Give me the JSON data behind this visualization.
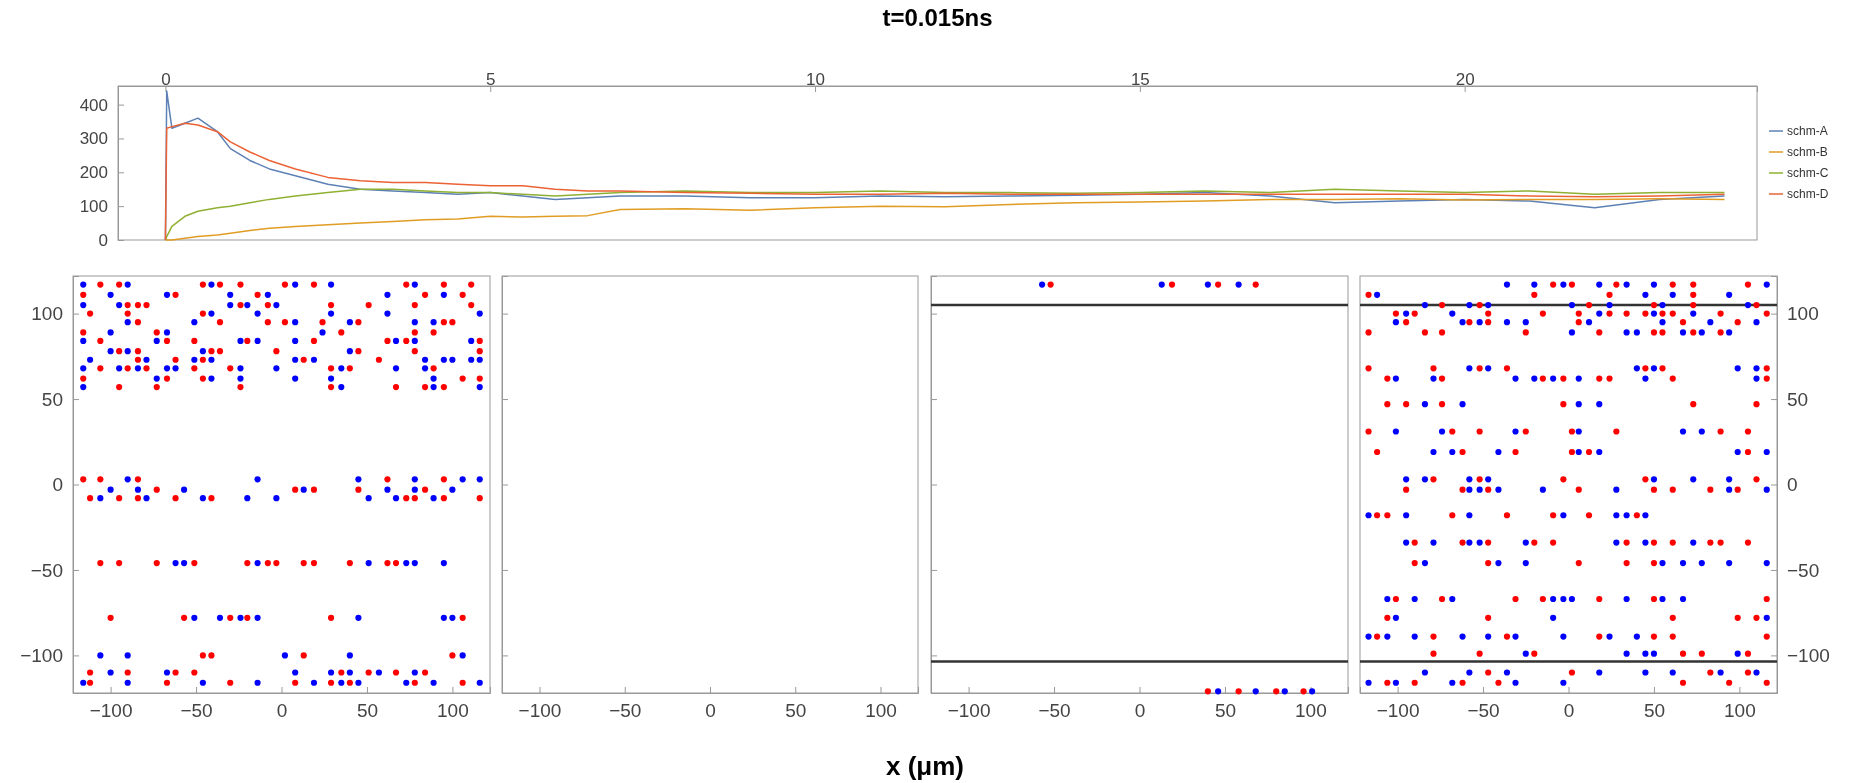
{
  "chart_data": [
    {
      "type": "line",
      "title": "t=0.015ns",
      "legend": "right",
      "xlim": [
        -0.73,
        24.5
      ],
      "xticks": [
        0,
        5,
        10,
        15,
        20
      ],
      "ylim": [
        0,
        455
      ],
      "yticks": [
        0,
        100,
        200,
        300,
        400
      ],
      "x": [
        0,
        0.02,
        0.1,
        0.3,
        0.5,
        0.8,
        1,
        1.3,
        1.6,
        2,
        2.5,
        3,
        3.5,
        4,
        4.5,
        5,
        5.5,
        6,
        6.5,
        7,
        8,
        9,
        10,
        11,
        12,
        13,
        14,
        15,
        16,
        17,
        18,
        19,
        20,
        21,
        22,
        23,
        24
      ],
      "series": [
        {
          "name": "schm-A",
          "color": "#5e81b5",
          "values": [
            0,
            440,
            330,
            345,
            360,
            320,
            270,
            235,
            210,
            190,
            165,
            150,
            145,
            140,
            135,
            140,
            130,
            120,
            125,
            130,
            130,
            125,
            125,
            130,
            128,
            130,
            132,
            135,
            140,
            130,
            110,
            115,
            120,
            115,
            95,
            120,
            130
          ]
        },
        {
          "name": "schm-B",
          "color": "#e19c24",
          "values": [
            0,
            0,
            0,
            5,
            10,
            15,
            20,
            28,
            35,
            40,
            45,
            50,
            55,
            60,
            62,
            70,
            68,
            70,
            72,
            90,
            92,
            88,
            95,
            100,
            98,
            105,
            110,
            112,
            115,
            120,
            120,
            122,
            118,
            120,
            120,
            122,
            120
          ]
        },
        {
          "name": "schm-C",
          "color": "#8fb032",
          "values": [
            0,
            10,
            40,
            70,
            85,
            95,
            100,
            110,
            120,
            130,
            140,
            150,
            150,
            145,
            140,
            140,
            135,
            130,
            135,
            140,
            145,
            140,
            140,
            145,
            140,
            140,
            138,
            140,
            145,
            140,
            150,
            145,
            140,
            145,
            135,
            140,
            140
          ]
        },
        {
          "name": "schm-D",
          "color": "#eb6235",
          "values": [
            0,
            330,
            335,
            345,
            340,
            320,
            290,
            260,
            235,
            210,
            185,
            175,
            170,
            170,
            165,
            160,
            160,
            150,
            145,
            145,
            140,
            138,
            135,
            135,
            138,
            135,
            135,
            135,
            135,
            135,
            135,
            135,
            135,
            130,
            128,
            130,
            135
          ]
        }
      ]
    },
    {
      "type": "scatter",
      "marker": "circle",
      "xlim": [
        -122,
        122
      ],
      "xticks": [
        -100,
        -50,
        0,
        50,
        100
      ],
      "ylim": [
        -122,
        122
      ],
      "yticks": [
        -100,
        -50,
        0,
        50,
        100
      ],
      "series": [
        {
          "color": "#ff0000",
          "x": [
            -106,
            -95,
            -46,
            -36,
            -24,
            2,
            19,
            73,
            95,
            111,
            -116,
            -62,
            -14,
            84,
            106,
            -90,
            -84,
            -79,
            -24,
            -8,
            29,
            51,
            78,
            111,
            -112,
            -90,
            -46,
            -84,
            -36,
            -8,
            2,
            24,
            45,
            95,
            100,
            -116,
            -73,
            35,
            78,
            89,
            -106,
            -67,
            -51,
            -20,
            19,
            62,
            73,
            116,
            -95,
            -84,
            -41,
            -36,
            -3,
            45,
            78,
            116,
            -84,
            -62,
            -46,
            13,
            57,
            -106,
            -90,
            -79,
            -51,
            -30,
            29,
            40,
            89,
            -116,
            -67,
            -46,
            106,
            116,
            -95,
            -73,
            -24,
            29,
            67,
            84,
            95,
            -116,
            -106,
            -84,
            62,
            95,
            -73,
            8,
            19,
            45,
            84,
            -112,
            -95,
            -84,
            -62,
            -41,
            73,
            78,
            95,
            116,
            -106,
            -95,
            -73,
            -51,
            -20,
            -8,
            -3,
            13,
            19,
            40,
            62,
            67,
            -100,
            -57,
            -30,
            -20,
            29,
            106,
            -46,
            -41,
            13,
            100,
            -112,
            -90,
            -62,
            -51,
            35,
            51,
            67,
            84,
            -112,
            -67,
            -30,
            8,
            29,
            40,
            78,
            106
          ],
          "values": [
            117,
            117,
            117,
            117,
            117,
            117,
            117,
            117,
            117,
            117,
            111,
            111,
            111,
            111,
            111,
            105,
            105,
            105,
            105,
            105,
            105,
            105,
            105,
            105,
            100,
            100,
            100,
            95,
            95,
            95,
            95,
            95,
            95,
            95,
            95,
            89,
            89,
            89,
            89,
            89,
            84,
            84,
            84,
            84,
            84,
            84,
            84,
            84,
            78,
            78,
            78,
            78,
            78,
            78,
            78,
            78,
            73,
            73,
            73,
            73,
            73,
            68,
            68,
            68,
            68,
            68,
            68,
            68,
            68,
            62,
            62,
            62,
            62,
            62,
            57,
            57,
            57,
            57,
            57,
            57,
            57,
            3,
            3,
            3,
            3,
            3,
            -3,
            -3,
            -3,
            -3,
            -3,
            -8,
            -8,
            -8,
            -8,
            -8,
            -8,
            -8,
            -8,
            -8,
            -46,
            -46,
            -46,
            -46,
            -46,
            -46,
            -46,
            -46,
            -46,
            -46,
            -46,
            -46,
            -78,
            -78,
            -78,
            -78,
            -78,
            -78,
            -100,
            -100,
            -100,
            -100,
            -110,
            -110,
            -110,
            -110,
            -110,
            -110,
            -110,
            -110,
            -116,
            -116,
            -116,
            -116,
            -116,
            -116,
            -116,
            -116
          ]
        },
        {
          "color": "#0000ff",
          "x": [
            -116,
            -90,
            -41,
            8,
            29,
            78,
            -100,
            -67,
            -30,
            -8,
            62,
            95,
            -116,
            -95,
            -30,
            -20,
            -3,
            -41,
            -14,
            29,
            62,
            116,
            -90,
            -51,
            8,
            40,
            78,
            89,
            -100,
            -67,
            24,
            -116,
            -73,
            -24,
            -14,
            8,
            67,
            78,
            111,
            -100,
            -90,
            -46,
            40,
            -112,
            -79,
            -51,
            -41,
            8,
            19,
            84,
            95,
            100,
            111,
            116,
            -116,
            -95,
            -84,
            -67,
            -62,
            -24,
            -3,
            35,
            67,
            84,
            -73,
            -41,
            -24,
            8,
            29,
            89,
            -116,
            35,
            89,
            116,
            -90,
            -14,
            45,
            78,
            106,
            116,
            -100,
            -84,
            -57,
            13,
            62,
            78,
            100,
            -106,
            -79,
            -46,
            -20,
            -3,
            51,
            67,
            89,
            -62,
            -57,
            -14,
            51,
            73,
            78,
            95,
            -51,
            -36,
            -24,
            -14,
            45,
            95,
            100,
            -106,
            -90,
            2,
            40,
            106,
            -100,
            -67,
            8,
            29,
            40,
            57,
            78,
            -116,
            -90,
            -46,
            -14,
            19,
            35,
            45,
            73,
            89,
            116
          ],
          "values": [
            117,
            117,
            117,
            117,
            117,
            117,
            111,
            111,
            111,
            111,
            111,
            111,
            105,
            105,
            105,
            105,
            105,
            100,
            100,
            100,
            100,
            100,
            95,
            95,
            95,
            95,
            95,
            95,
            89,
            89,
            89,
            84,
            84,
            84,
            84,
            84,
            84,
            84,
            84,
            78,
            78,
            78,
            78,
            73,
            73,
            73,
            73,
            73,
            73,
            73,
            73,
            73,
            73,
            73,
            68,
            68,
            68,
            68,
            68,
            68,
            68,
            68,
            68,
            68,
            62,
            62,
            62,
            62,
            62,
            62,
            57,
            57,
            57,
            57,
            3,
            3,
            3,
            3,
            3,
            3,
            -3,
            -3,
            -3,
            -3,
            -3,
            -3,
            -3,
            -8,
            -8,
            -8,
            -8,
            -8,
            -8,
            -8,
            -8,
            -46,
            -46,
            -46,
            -46,
            -46,
            -46,
            -46,
            -78,
            -78,
            -78,
            -78,
            -78,
            -78,
            -78,
            -100,
            -100,
            -100,
            -100,
            -100,
            -110,
            -110,
            -110,
            -110,
            -110,
            -110,
            -110,
            -116,
            -116,
            -116,
            -116,
            -116,
            -116,
            -116,
            -116,
            -116,
            -116
          ]
        }
      ]
    },
    {
      "type": "scatter",
      "tick_labels": "x",
      "xlim": [
        -122,
        122
      ],
      "xticks": [
        -100,
        -50,
        0,
        50,
        100
      ],
      "ylim": [
        -122,
        122
      ],
      "yticks": [
        -100,
        -50,
        0,
        50,
        100
      ],
      "xlabel": "x (μm)"
    },
    {
      "type": "scatter",
      "marker": "circle",
      "tick_labels": "x",
      "xlim": [
        -122,
        122
      ],
      "xticks": [
        -100,
        -50,
        0,
        50,
        100
      ],
      "ylim": [
        -122,
        122
      ],
      "yticks": [
        -100,
        -50,
        0,
        50,
        100
      ],
      "ref_lines": [
        {
          "axis": "y",
          "value": 105,
          "color": "#333333"
        },
        {
          "axis": "y",
          "value": -103.5,
          "color": "#333333"
        }
      ],
      "series": [
        {
          "color": "#ff0000",
          "x": [
            -52,
            19,
            46,
            68,
            40,
            58,
            80,
            96
          ],
          "values": [
            117,
            117,
            117,
            117,
            -121,
            -121,
            -121,
            -121
          ]
        },
        {
          "color": "#0000ff",
          "x": [
            -57,
            13,
            40,
            58,
            46,
            68,
            85,
            101
          ],
          "values": [
            117,
            117,
            117,
            117,
            -121,
            -121,
            -121,
            -121
          ]
        }
      ]
    },
    {
      "type": "scatter",
      "marker": "circle",
      "xlim": [
        -122,
        122
      ],
      "xticks": [
        -100,
        -50,
        0,
        50,
        100
      ],
      "ylim": [
        -122,
        122
      ],
      "yticks": [
        -100,
        -50,
        0,
        50,
        100
      ],
      "ref_lines": [
        {
          "axis": "y",
          "value": 105,
          "color": "#333333"
        },
        {
          "axis": "y",
          "value": -103.5,
          "color": "#333333"
        }
      ],
      "series": [
        {
          "color": "#ff0000",
          "x": [
            -9,
            2,
            28,
            61,
            73,
            105,
            -117,
            -20,
            24,
            73,
            -74,
            -52,
            12,
            50,
            73,
            110,
            -101,
            -90,
            -47,
            -15,
            6,
            24,
            34,
            45,
            55,
            61,
            89,
            116,
            -95,
            -58,
            -47,
            6,
            67,
            99,
            -117,
            -84,
            -74,
            -25,
            18,
            50,
            55,
            73,
            89,
            -117,
            -79,
            -52,
            -36,
            45,
            55,
            116,
            -106,
            -74,
            -15,
            -3,
            18,
            24,
            61,
            116,
            -106,
            -95,
            -74,
            -3,
            73,
            110,
            -117,
            -68,
            -52,
            -25,
            2,
            28,
            89,
            105,
            -112,
            -62,
            -31,
            2,
            12,
            105,
            -79,
            -52,
            -3,
            45,
            110,
            -95,
            -62,
            -47,
            6,
            50,
            61,
            83,
            99,
            -112,
            -106,
            -68,
            -36,
            -9,
            12,
            40,
            -90,
            -62,
            -47,
            -20,
            -9,
            34,
            50,
            61,
            83,
            89,
            105,
            -90,
            -47,
            6,
            34,
            50,
            -101,
            -74,
            -31,
            -15,
            18,
            50,
            116,
            -106,
            -47,
            61,
            99,
            110,
            -112,
            -79,
            -36,
            18,
            50,
            61,
            116,
            -79,
            -52,
            -20,
            67,
            78,
            105,
            -47,
            2,
            83,
            105,
            -106,
            -90,
            -62,
            -41,
            67,
            94,
            116
          ],
          "values": [
            117,
            117,
            117,
            117,
            117,
            117,
            111,
            111,
            111,
            111,
            105,
            105,
            105,
            105,
            105,
            105,
            100,
            100,
            100,
            100,
            100,
            100,
            100,
            100,
            100,
            100,
            100,
            100,
            95,
            95,
            95,
            95,
            95,
            95,
            89,
            89,
            89,
            89,
            89,
            89,
            89,
            89,
            89,
            68,
            68,
            68,
            68,
            68,
            68,
            68,
            62,
            62,
            62,
            62,
            62,
            62,
            62,
            62,
            47,
            47,
            47,
            47,
            47,
            47,
            31,
            31,
            31,
            31,
            31,
            31,
            31,
            31,
            19,
            19,
            19,
            19,
            19,
            19,
            3,
            3,
            3,
            3,
            3,
            -3,
            -3,
            -3,
            -3,
            -3,
            -3,
            -3,
            -3,
            -18,
            -18,
            -18,
            -18,
            -18,
            -18,
            -18,
            -34,
            -34,
            -34,
            -34,
            -34,
            -34,
            -34,
            -34,
            -34,
            -34,
            -34,
            -46,
            -46,
            -46,
            -46,
            -46,
            -67,
            -67,
            -67,
            -67,
            -67,
            -67,
            -67,
            -78,
            -78,
            -78,
            -78,
            -78,
            -89,
            -89,
            -89,
            -89,
            -89,
            -89,
            -89,
            -99,
            -99,
            -99,
            -99,
            -99,
            -99,
            -110,
            -110,
            -110,
            -110,
            -116,
            -116,
            -116,
            -116,
            -116,
            -116,
            -116
          ]
        },
        {
          "color": "#0000ff",
          "x": [
            -36,
            -20,
            -3,
            18,
            34,
            50,
            116,
            -112,
            45,
            61,
            94,
            -84,
            -58,
            -47,
            2,
            24,
            55,
            105,
            -95,
            -68,
            18,
            50,
            73,
            -101,
            -62,
            -52,
            -36,
            -25,
            12,
            55,
            83,
            110,
            2,
            34,
            40,
            67,
            78,
            94,
            -58,
            -47,
            40,
            50,
            99,
            110,
            -101,
            -79,
            -31,
            -20,
            -9,
            6,
            45,
            110,
            -84,
            -62,
            6,
            18,
            -101,
            -74,
            -31,
            6,
            67,
            78,
            -79,
            -68,
            -41,
            6,
            18,
            99,
            116,
            -95,
            -84,
            -58,
            -47,
            50,
            73,
            94,
            -58,
            -52,
            -41,
            -15,
            28,
            94,
            116,
            -117,
            -95,
            -58,
            -3,
            28,
            34,
            45,
            -95,
            -79,
            -58,
            -52,
            -25,
            28,
            45,
            73,
            -84,
            -41,
            -25,
            55,
            67,
            78,
            94,
            116,
            -106,
            -90,
            -68,
            -9,
            -3,
            2,
            34,
            55,
            67,
            -101,
            -9,
            116,
            -117,
            -106,
            -90,
            -62,
            -47,
            -31,
            -3,
            24,
            40,
            -25,
            34,
            45,
            50,
            99,
            -84,
            -58,
            -36,
            18,
            45,
            61,
            89,
            110,
            -117,
            -101,
            -68,
            -31,
            -3
          ],
          "values": [
            117,
            117,
            117,
            117,
            117,
            117,
            117,
            111,
            111,
            111,
            111,
            105,
            105,
            105,
            105,
            105,
            105,
            105,
            100,
            100,
            100,
            100,
            100,
            95,
            95,
            95,
            95,
            95,
            95,
            95,
            95,
            95,
            89,
            89,
            89,
            89,
            89,
            89,
            68,
            68,
            68,
            68,
            68,
            68,
            62,
            62,
            62,
            62,
            62,
            62,
            62,
            62,
            47,
            47,
            47,
            47,
            31,
            31,
            31,
            31,
            31,
            31,
            19,
            19,
            19,
            19,
            19,
            19,
            19,
            3,
            3,
            3,
            3,
            3,
            3,
            3,
            -3,
            -3,
            -3,
            -3,
            -3,
            -3,
            -3,
            -18,
            -18,
            -18,
            -18,
            -18,
            -18,
            -18,
            -34,
            -34,
            -34,
            -34,
            -34,
            -34,
            -34,
            -34,
            -46,
            -46,
            -46,
            -46,
            -46,
            -46,
            -46,
            -46,
            -67,
            -67,
            -67,
            -67,
            -67,
            -67,
            -67,
            -67,
            -67,
            -78,
            -78,
            -78,
            -89,
            -89,
            -89,
            -89,
            -89,
            -89,
            -89,
            -89,
            -89,
            -99,
            -99,
            -99,
            -99,
            -99,
            -110,
            -110,
            -110,
            -110,
            -110,
            -110,
            -110,
            -110,
            -116,
            -116,
            -116,
            -116,
            -116
          ]
        }
      ]
    }
  ]
}
